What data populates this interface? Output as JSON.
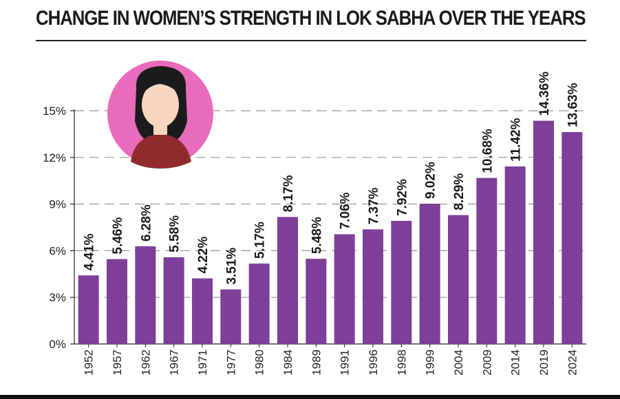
{
  "title": "CHANGE IN WOMEN’S STRENGTH IN LOK SABHA OVER THE YEARS",
  "colors": {
    "bar": "#7e3f98",
    "grid": "#9a9a9a",
    "axis": "#222222",
    "avatar_circle": "#e96bbb",
    "avatar_hair": "#1b1b1b",
    "avatar_skin": "#f7d6bd",
    "avatar_shirt": "#8f2b2b"
  },
  "icons": [
    "woman-avatar-icon"
  ],
  "chart_data": {
    "type": "bar",
    "title": "CHANGE IN WOMEN’S STRENGTH IN LOK SABHA OVER THE YEARS",
    "xlabel": "",
    "ylabel": "",
    "categories": [
      "1952",
      "1957",
      "1962",
      "1967",
      "1971",
      "1977",
      "1980",
      "1984",
      "1989",
      "1991",
      "1996",
      "1998",
      "1999",
      "2004",
      "2009",
      "2014",
      "2019",
      "2024"
    ],
    "values": [
      4.41,
      5.46,
      6.28,
      5.58,
      4.22,
      3.51,
      5.17,
      8.17,
      5.48,
      7.06,
      7.37,
      7.92,
      9.02,
      8.29,
      10.68,
      11.42,
      14.36,
      13.63
    ],
    "data_labels": [
      "4.41%",
      "5.46%",
      "6.28%",
      "5.58%",
      "4.22%",
      "3.51%",
      "5.17%",
      "8.17%",
      "5.48%",
      "7.06%",
      "7.37%",
      "7.92%",
      "9.02%",
      "8.29%",
      "10.68%",
      "11.42%",
      "14.36%",
      "13.63%"
    ],
    "y_ticks": [
      0,
      3,
      6,
      9,
      12,
      15
    ],
    "y_tick_labels": [
      "0%",
      "3%",
      "6%",
      "9%",
      "12%",
      "15%"
    ],
    "ylim": [
      0,
      15
    ],
    "grid": true,
    "legend": "none"
  }
}
